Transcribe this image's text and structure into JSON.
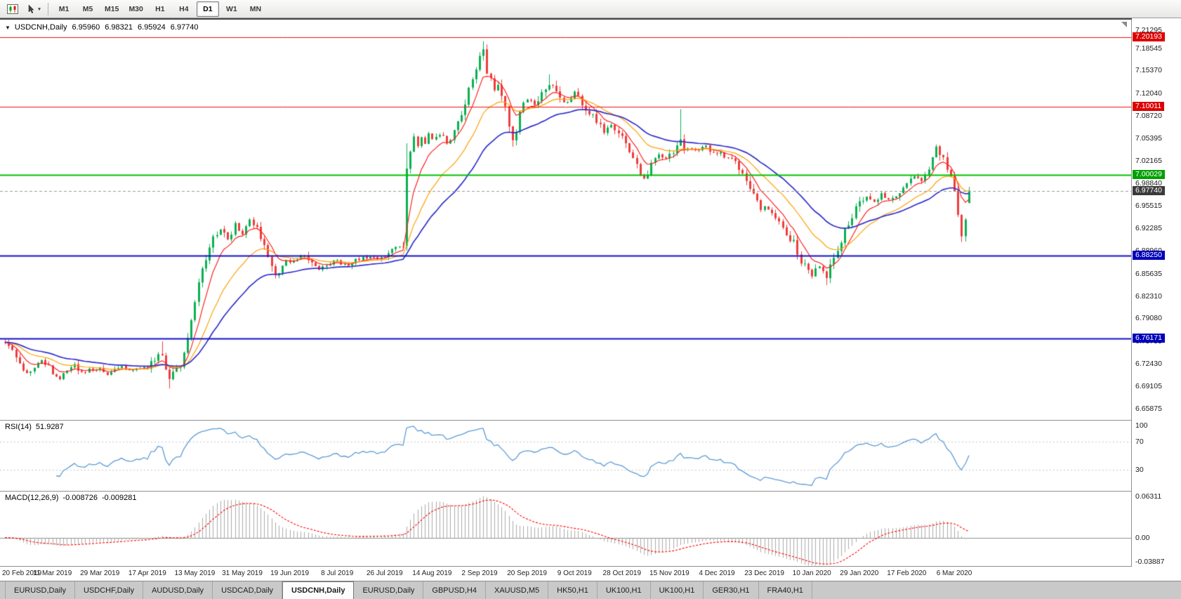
{
  "toolbar": {
    "timeframes": [
      "M1",
      "M5",
      "M15",
      "M30",
      "H1",
      "H4",
      "D1",
      "W1",
      "MN"
    ],
    "active_timeframe": "D1"
  },
  "chart": {
    "title": {
      "symbol": "USDCNH,Daily",
      "open": "6.95960",
      "high": "6.98321",
      "low": "6.95924",
      "close": "6.97740"
    },
    "price_axis": {
      "ticks": [
        "7.21295",
        "7.18545",
        "7.15370",
        "7.12040",
        "7.08720",
        "7.05395",
        "7.02165",
        "6.98840",
        "6.95515",
        "6.92285",
        "6.88960",
        "6.85635",
        "6.82310",
        "6.79080",
        "6.75755",
        "6.72430",
        "6.69105",
        "6.65875"
      ],
      "range_top": 7.228,
      "range_bottom": 6.642
    },
    "levels": [
      {
        "label": "7.20193",
        "price": 7.20193,
        "line_color": "#ee1111",
        "badge_color": "#dd0000",
        "width": 1,
        "dashed": false
      },
      {
        "label": "7.10011",
        "price": 7.10011,
        "line_color": "#ee1111",
        "badge_color": "#dd0000",
        "width": 1,
        "dashed": false
      },
      {
        "label": "7.00029",
        "price": 7.00029,
        "line_color": "#00c200",
        "badge_color": "#00a000",
        "width": 2,
        "dashed": false
      },
      {
        "label": "6.97740",
        "price": 6.9774,
        "line_color": "#9a9a9a",
        "badge_color": "#3a3a3a",
        "width": 1,
        "dashed": true
      },
      {
        "label": "6.88250",
        "price": 6.8825,
        "line_color": "#1111cc",
        "badge_color": "#0000bb",
        "width": 2,
        "dashed": false
      },
      {
        "label": "6.76171",
        "price": 6.76171,
        "line_color": "#1111cc",
        "badge_color": "#0000bb",
        "width": 2,
        "dashed": false
      }
    ]
  },
  "rsi": {
    "label": "RSI(14)",
    "value": "51.9287",
    "axis_labels": [
      "100",
      "70",
      "30"
    ],
    "upper_level": 70,
    "lower_level": 30,
    "line_color": "#5b9bd5"
  },
  "macd": {
    "label": "MACD(12,26,9)",
    "macd_value": "-0.008726",
    "signal_value": "-0.009281",
    "axis_top": "0.06311",
    "axis_zero": "0.00",
    "axis_bottom": "-0.03887",
    "hist_color": "#ababab",
    "signal_color": "#ff0000",
    "range_max": 0.0631,
    "range_min": -0.0389
  },
  "date_axis": [
    "20 Feb 2019",
    "11 Mar 2019",
    "29 Mar 2019",
    "17 Apr 2019",
    "13 May 2019",
    "31 May 2019",
    "19 Jun 2019",
    "8 Jul 2019",
    "26 Jul 2019",
    "14 Aug 2019",
    "2 Sep 2019",
    "20 Sep 2019",
    "9 Oct 2019",
    "28 Oct 2019",
    "15 Nov 2019",
    "4 Dec 2019",
    "23 Dec 2019",
    "10 Jan 2020",
    "29 Jan 2020",
    "17 Feb 2020",
    "6 Mar 2020"
  ],
  "tabs": [
    {
      "label": "EURUSD,Daily",
      "active": false
    },
    {
      "label": "USDCHF,Daily",
      "active": false
    },
    {
      "label": "AUDUSD,Daily",
      "active": false
    },
    {
      "label": "USDCAD,Daily",
      "active": false
    },
    {
      "label": "USDCNH,Daily",
      "active": true
    },
    {
      "label": "EURUSD,Daily",
      "active": false
    },
    {
      "label": "GBPUSD,H4",
      "active": false
    },
    {
      "label": "XAUUSD,M5",
      "active": false
    },
    {
      "label": "HK50,H1",
      "active": false
    },
    {
      "label": "UK100,H1",
      "active": false
    },
    {
      "label": "UK100,H1",
      "active": false
    },
    {
      "label": "GER30,H1",
      "active": false
    },
    {
      "label": "FRA40,H1",
      "active": false
    }
  ],
  "chart_data": {
    "type": "candlestick",
    "symbol": "USDCNH",
    "timeframe": "Daily",
    "bars": 265,
    "bars_per_date_label": 13,
    "up_color": "#09b050",
    "down_color": "#f03b3b",
    "last_ohlc": {
      "open": 6.9596,
      "high": 6.98321,
      "low": 6.95924,
      "close": 6.9774
    },
    "price_anchors": [
      [
        0,
        6.758
      ],
      [
        2,
        6.744
      ],
      [
        4,
        6.724
      ],
      [
        6,
        6.711
      ],
      [
        8,
        6.721
      ],
      [
        10,
        6.731
      ],
      [
        13,
        6.712
      ],
      [
        15,
        6.703
      ],
      [
        17,
        6.716
      ],
      [
        19,
        6.722
      ],
      [
        21,
        6.71
      ],
      [
        23,
        6.715
      ],
      [
        26,
        6.718
      ],
      [
        28,
        6.707
      ],
      [
        30,
        6.715
      ],
      [
        32,
        6.722
      ],
      [
        34,
        6.713
      ],
      [
        36,
        6.717
      ],
      [
        39,
        6.719
      ],
      [
        41,
        6.731
      ],
      [
        43,
        6.742
      ],
      [
        44,
        6.718
      ],
      [
        45,
        6.701
      ],
      [
        46,
        6.712
      ],
      [
        47,
        6.719
      ],
      [
        48,
        6.722
      ],
      [
        49,
        6.735
      ],
      [
        50,
        6.758
      ],
      [
        51,
        6.789
      ],
      [
        52,
        6.814
      ],
      [
        53,
        6.84
      ],
      [
        54,
        6.86
      ],
      [
        55,
        6.876
      ],
      [
        56,
        6.892
      ],
      [
        57,
        6.906
      ],
      [
        58,
        6.916
      ],
      [
        59,
        6.921
      ],
      [
        60,
        6.912
      ],
      [
        61,
        6.907
      ],
      [
        62,
        6.918
      ],
      [
        63,
        6.928
      ],
      [
        64,
        6.921
      ],
      [
        65,
        6.917
      ],
      [
        66,
        6.928
      ],
      [
        67,
        6.937
      ],
      [
        68,
        6.931
      ],
      [
        69,
        6.927
      ],
      [
        70,
        6.911
      ],
      [
        71,
        6.901
      ],
      [
        72,
        6.884
      ],
      [
        73,
        6.867
      ],
      [
        74,
        6.852
      ],
      [
        75,
        6.858
      ],
      [
        76,
        6.871
      ],
      [
        77,
        6.877
      ],
      [
        78,
        6.871
      ],
      [
        80,
        6.879
      ],
      [
        82,
        6.883
      ],
      [
        84,
        6.871
      ],
      [
        86,
        6.861
      ],
      [
        88,
        6.869
      ],
      [
        90,
        6.876
      ],
      [
        92,
        6.871
      ],
      [
        94,
        6.867
      ],
      [
        96,
        6.875
      ],
      [
        98,
        6.879
      ],
      [
        100,
        6.882
      ],
      [
        102,
        6.878
      ],
      [
        104,
        6.883
      ],
      [
        106,
        6.89
      ],
      [
        108,
        6.898
      ],
      [
        109,
        6.896
      ],
      [
        110,
        7.01
      ],
      [
        111,
        7.034
      ],
      [
        112,
        7.056
      ],
      [
        113,
        7.042
      ],
      [
        114,
        7.054
      ],
      [
        115,
        7.044
      ],
      [
        116,
        7.058
      ],
      [
        117,
        7.052
      ],
      [
        119,
        7.06
      ],
      [
        121,
        7.045
      ],
      [
        123,
        7.064
      ],
      [
        125,
        7.09
      ],
      [
        127,
        7.126
      ],
      [
        129,
        7.156
      ],
      [
        130,
        7.17
      ],
      [
        131,
        7.184
      ],
      [
        132,
        7.15
      ],
      [
        133,
        7.138
      ],
      [
        134,
        7.124
      ],
      [
        135,
        7.13
      ],
      [
        136,
        7.116
      ],
      [
        137,
        7.096
      ],
      [
        138,
        7.074
      ],
      [
        139,
        7.052
      ],
      [
        140,
        7.066
      ],
      [
        141,
        7.088
      ],
      [
        142,
        7.104
      ],
      [
        143,
        7.114
      ],
      [
        145,
        7.104
      ],
      [
        147,
        7.118
      ],
      [
        149,
        7.134
      ],
      [
        151,
        7.12
      ],
      [
        153,
        7.106
      ],
      [
        155,
        7.114
      ],
      [
        156,
        7.122
      ],
      [
        158,
        7.108
      ],
      [
        160,
        7.092
      ],
      [
        162,
        7.078
      ],
      [
        164,
        7.064
      ],
      [
        166,
        7.072
      ],
      [
        168,
        7.06
      ],
      [
        169,
        7.054
      ],
      [
        171,
        7.034
      ],
      [
        173,
        7.014
      ],
      [
        175,
        6.995
      ],
      [
        176,
        7.006
      ],
      [
        177,
        7.018
      ],
      [
        179,
        7.032
      ],
      [
        181,
        7.024
      ],
      [
        182,
        7.029
      ],
      [
        184,
        7.04
      ],
      [
        185,
        7.05
      ],
      [
        186,
        7.034
      ],
      [
        188,
        7.04
      ],
      [
        190,
        7.036
      ],
      [
        192,
        7.044
      ],
      [
        193,
        7.038
      ],
      [
        195,
        7.034
      ],
      [
        197,
        7.028
      ],
      [
        199,
        7.024
      ],
      [
        201,
        7.008
      ],
      [
        203,
        6.994
      ],
      [
        205,
        6.968
      ],
      [
        207,
        6.948
      ],
      [
        208,
        6.954
      ],
      [
        210,
        6.944
      ],
      [
        212,
        6.931
      ],
      [
        214,
        6.914
      ],
      [
        216,
        6.901
      ],
      [
        218,
        6.874
      ],
      [
        220,
        6.858
      ],
      [
        221,
        6.855
      ],
      [
        222,
        6.863
      ],
      [
        223,
        6.867
      ],
      [
        224,
        6.857
      ],
      [
        225,
        6.849
      ],
      [
        226,
        6.865
      ],
      [
        227,
        6.881
      ],
      [
        228,
        6.892
      ],
      [
        229,
        6.905
      ],
      [
        230,
        6.917
      ],
      [
        231,
        6.93
      ],
      [
        232,
        6.94
      ],
      [
        233,
        6.95
      ],
      [
        234,
        6.96
      ],
      [
        236,
        6.97
      ],
      [
        238,
        6.962
      ],
      [
        240,
        6.976
      ],
      [
        242,
        6.966
      ],
      [
        244,
        6.973
      ],
      [
        246,
        6.983
      ],
      [
        247,
        6.99
      ],
      [
        249,
        7.0
      ],
      [
        251,
        6.993
      ],
      [
        253,
        7.011
      ],
      [
        254,
        7.028
      ],
      [
        255,
        7.04
      ],
      [
        256,
        7.032
      ],
      [
        257,
        7.022
      ],
      [
        258,
        7.01
      ],
      [
        259,
        6.994
      ],
      [
        260,
        6.974
      ],
      [
        261,
        6.946
      ],
      [
        262,
        6.914
      ],
      [
        263,
        6.94
      ],
      [
        264,
        6.9774
      ]
    ],
    "ohlc_overrides": {
      "43": {
        "high": 6.757
      },
      "45": {
        "low": 6.688
      },
      "110": {
        "open": 6.897,
        "low": 6.89,
        "high": 7.047,
        "close": 7.01
      },
      "131": {
        "high": 7.1965
      },
      "139": {
        "low": 7.042
      },
      "149": {
        "high": 7.148
      },
      "185": {
        "high": 7.097
      },
      "225": {
        "low": 6.8395
      },
      "262": {
        "low": 6.9025
      },
      "264": {
        "open": 6.9596,
        "high": 6.98321,
        "low": 6.95924,
        "close": 6.9774
      }
    },
    "moving_averages": [
      {
        "name": "fast",
        "type": "ema",
        "period": 7,
        "color": "#ff2020",
        "width": 1.2
      },
      {
        "name": "medium",
        "type": "ema",
        "period": 18,
        "color": "#ffa000",
        "width": 1.2
      },
      {
        "name": "slow",
        "type": "ema",
        "period": 34,
        "color": "#3030cc",
        "width": 1.7
      }
    ],
    "indicators": {
      "rsi": {
        "period": 14,
        "current": 51.9287
      },
      "macd": {
        "fast": 12,
        "slow": 26,
        "signal": 9,
        "current": -0.008726,
        "signal_current": -0.009281
      }
    }
  }
}
